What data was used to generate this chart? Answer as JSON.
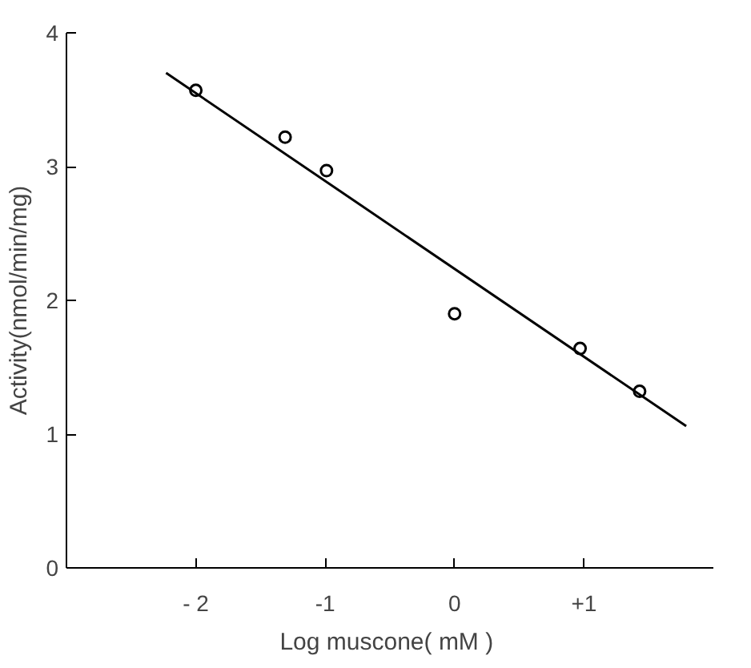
{
  "chart_data": {
    "type": "scatter",
    "xlabel": "Log  muscone( mM )",
    "ylabel": "Activity(nmol/min/mg)",
    "xlim": [
      -3,
      2
    ],
    "ylim": [
      0,
      4
    ],
    "xticks": [
      {
        "value": -2,
        "label": "- 2"
      },
      {
        "value": -1,
        "label": "-1"
      },
      {
        "value": 0,
        "label": "0"
      },
      {
        "value": 1,
        "label": "+1"
      }
    ],
    "yticks": [
      0,
      1,
      2,
      3,
      4
    ],
    "grid": false,
    "series": [
      {
        "marker": "circle",
        "color": "#000000",
        "x": [
          -2,
          -1.31,
          -0.99,
          0,
          0.97,
          1.43
        ],
        "values": [
          3.57,
          3.22,
          2.97,
          1.9,
          1.64,
          1.32
        ]
      },
      {
        "type": "line",
        "marker": "none",
        "color": "#000000",
        "x": [
          -2.23,
          1.79
        ],
        "values": [
          3.7,
          1.06
        ]
      }
    ]
  }
}
